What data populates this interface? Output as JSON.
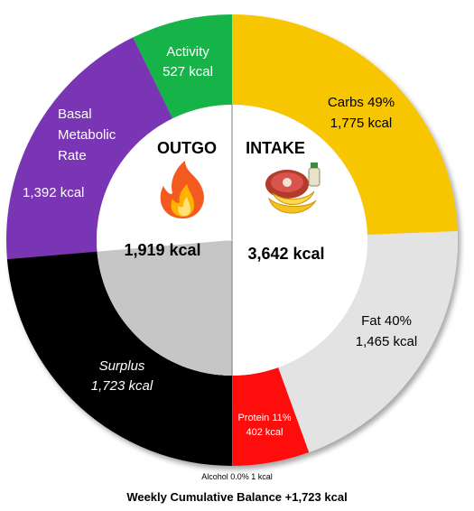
{
  "chart_data": {
    "type": "pie",
    "outgo": {
      "title": "OUTGO",
      "total": "1,919 kcal",
      "segments": [
        {
          "name": "Activity",
          "value": 527,
          "value_label": "527 kcal",
          "color": "#16b34a"
        },
        {
          "name": "Basal Metabolic Rate",
          "value": 1392,
          "value_label": "1,392 kcal",
          "color": "#7a35b5"
        },
        {
          "name": "Surplus",
          "value": 1723,
          "value_label": "1,723 kcal",
          "color": "#000000"
        }
      ]
    },
    "intake": {
      "title": "INTAKE",
      "total": "3,642 kcal",
      "segments": [
        {
          "name": "Carbs",
          "percent": "49%",
          "value": 1775,
          "value_label": "1,775 kcal",
          "color": "#f7c600"
        },
        {
          "name": "Fat",
          "percent": "40%",
          "value": 1465,
          "value_label": "1,465 kcal",
          "color": "#e3e3e3"
        },
        {
          "name": "Protein",
          "percent": "11%",
          "value": 402,
          "value_label": "402 kcal",
          "color": "#ff0a0a"
        },
        {
          "name": "Alcohol",
          "percent": "0.0%",
          "value": 1,
          "value_label": "1 kcal",
          "color": "#7a7a7a"
        }
      ]
    },
    "labels": {
      "activity_l1": "Activity",
      "activity_l2": "527 kcal",
      "bmr_l1": "Basal",
      "bmr_l2": "Metabolic",
      "bmr_l3": "Rate",
      "bmr_l4": "1,392 kcal",
      "surplus_l1": "Surplus",
      "surplus_l2": "1,723 kcal",
      "carbs_l1": "Carbs 49%",
      "carbs_l2": "1,775 kcal",
      "fat_l1": "Fat 40%",
      "fat_l2": "1,465 kcal",
      "protein_l1": "Protein 11%",
      "protein_l2": "402 kcal",
      "alcohol": "Alcohol 0.0% 1 kcal"
    },
    "footer": "Weekly Cumulative Balance +1,723 kcal",
    "icons": [
      "fire-icon",
      "food-icon"
    ]
  }
}
